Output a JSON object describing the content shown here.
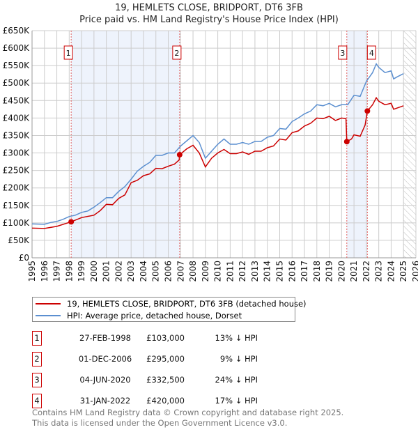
{
  "title": "19, HEMLETS CLOSE, BRIDPORT, DT6 3FB",
  "subtitle": "Price paid vs. HM Land Registry's House Price Index (HPI)",
  "chart_data": {
    "type": "line",
    "xlim": [
      1995,
      2026
    ],
    "ylim": [
      0,
      650000
    ],
    "yticks": [
      {
        "v": 0,
        "label": "£0"
      },
      {
        "v": 50000,
        "label": "£50K"
      },
      {
        "v": 100000,
        "label": "£100K"
      },
      {
        "v": 150000,
        "label": "£150K"
      },
      {
        "v": 200000,
        "label": "£200K"
      },
      {
        "v": 250000,
        "label": "£250K"
      },
      {
        "v": 300000,
        "label": "£300K"
      },
      {
        "v": 350000,
        "label": "£350K"
      },
      {
        "v": 400000,
        "label": "£400K"
      },
      {
        "v": 450000,
        "label": "£450K"
      },
      {
        "v": 500000,
        "label": "£500K"
      },
      {
        "v": 550000,
        "label": "£550K"
      },
      {
        "v": 600000,
        "label": "£600K"
      },
      {
        "v": 650000,
        "label": "£650K"
      }
    ],
    "xticks": [
      "1995",
      "1996",
      "1997",
      "1998",
      "1999",
      "2000",
      "2001",
      "2002",
      "2003",
      "2004",
      "2005",
      "2006",
      "2007",
      "2008",
      "2009",
      "2010",
      "2011",
      "2012",
      "2013",
      "2014",
      "2015",
      "2016",
      "2017",
      "2018",
      "2019",
      "2020",
      "2021",
      "2022",
      "2023",
      "2024",
      "2025",
      "2026"
    ],
    "grid": true,
    "shaded": [
      [
        1998.16,
        2006.92
      ],
      [
        2020.42,
        2022.08
      ]
    ],
    "forecast_start": 2025.0,
    "colors": {
      "property": "#cc0000",
      "hpi": "#5b8fd0",
      "shade": "#eef3fc"
    },
    "series": [
      {
        "name": "19, HEMLETS CLOSE, BRIDPORT, DT6 3FB (detached house)",
        "color": "#cc0000",
        "x": [
          1995,
          1996,
          1997,
          1998.16,
          1999,
          2000,
          2000.5,
          2001,
          2001.5,
          2002,
          2002.5,
          2003,
          2003.5,
          2004,
          2004.5,
          2005,
          2005.5,
          2006,
          2006.5,
          2006.88,
          2006.92,
          2007.5,
          2008,
          2008.5,
          2009,
          2009.5,
          2010,
          2010.5,
          2011,
          2011.5,
          2012,
          2012.5,
          2013,
          2013.5,
          2014,
          2014.5,
          2015,
          2015.5,
          2016,
          2016.5,
          2017,
          2017.5,
          2018,
          2018.5,
          2019,
          2019.5,
          2020,
          2020.35,
          2020.42,
          2020.8,
          2021,
          2021.5,
          2021.9,
          2022.08,
          2022.5,
          2022.8,
          2023,
          2023.5,
          2024,
          2024.2,
          2025
        ],
        "y": [
          85000,
          84000,
          90000,
          103000,
          115000,
          122000,
          135000,
          153000,
          152000,
          170000,
          180000,
          215000,
          222000,
          235000,
          240000,
          256000,
          255000,
          262000,
          268000,
          280000,
          295000,
          312000,
          322000,
          300000,
          260000,
          285000,
          300000,
          310000,
          298000,
          298000,
          303000,
          296000,
          305000,
          305000,
          315000,
          320000,
          340000,
          337000,
          358000,
          363000,
          377000,
          385000,
          400000,
          398000,
          405000,
          393000,
          400000,
          398000,
          332500,
          340000,
          352000,
          348000,
          380000,
          420000,
          438000,
          458000,
          448000,
          438000,
          442000,
          425000,
          435000
        ]
      },
      {
        "name": "HPI: Average price, detached house, Dorset",
        "color": "#5b8fd0",
        "x": [
          1995,
          1996,
          1996.5,
          1997,
          1997.5,
          1998,
          1998.5,
          1999,
          1999.5,
          2000,
          2000.5,
          2001,
          2001.5,
          2002,
          2002.5,
          2003,
          2003.5,
          2004,
          2004.5,
          2005,
          2005.5,
          2006,
          2006.5,
          2007,
          2007.5,
          2008,
          2008.5,
          2009,
          2009.5,
          2010,
          2010.5,
          2011,
          2011.5,
          2012,
          2012.5,
          2013,
          2013.5,
          2014,
          2014.5,
          2015,
          2015.5,
          2016,
          2016.5,
          2017,
          2017.5,
          2018,
          2018.5,
          2019,
          2019.5,
          2020,
          2020.5,
          2021,
          2021.5,
          2022,
          2022.5,
          2022.8,
          2023,
          2023.5,
          2024,
          2024.2,
          2024.5,
          2025
        ],
        "y": [
          97000,
          96000,
          101000,
          104000,
          110000,
          118000,
          122000,
          130000,
          134000,
          145000,
          158000,
          172000,
          172000,
          190000,
          204000,
          225000,
          248000,
          262000,
          273000,
          293000,
          293000,
          300000,
          300000,
          320000,
          335000,
          350000,
          330000,
          285000,
          305000,
          325000,
          340000,
          325000,
          325000,
          330000,
          325000,
          333000,
          333000,
          345000,
          350000,
          370000,
          368000,
          390000,
          400000,
          412000,
          420000,
          438000,
          435000,
          442000,
          432000,
          438000,
          438000,
          465000,
          462000,
          505000,
          530000,
          555000,
          545000,
          530000,
          535000,
          512000,
          518000,
          527000
        ]
      }
    ],
    "sales": [
      {
        "n": "1",
        "date": "27-FEB-1998",
        "price": "£103,000",
        "pct": "13% ↓ HPI",
        "x": 1998.16,
        "y": 103000
      },
      {
        "n": "2",
        "date": "01-DEC-2006",
        "price": "£295,000",
        "pct": "9% ↓ HPI",
        "x": 2006.92,
        "y": 295000
      },
      {
        "n": "3",
        "date": "04-JUN-2020",
        "price": "£332,500",
        "pct": "24% ↓ HPI",
        "x": 2020.42,
        "y": 332500
      },
      {
        "n": "4",
        "date": "31-JAN-2022",
        "price": "£420,000",
        "pct": "17% ↓ HPI",
        "x": 2022.08,
        "y": 420000
      }
    ]
  },
  "legend": {
    "property": "19, HEMLETS CLOSE, BRIDPORT, DT6 3FB (detached house)",
    "hpi": "HPI: Average price, detached house, Dorset"
  },
  "footer": {
    "line1": "Contains HM Land Registry data © Crown copyright and database right 2025.",
    "line2": "This data is licensed under the Open Government Licence v3.0."
  }
}
